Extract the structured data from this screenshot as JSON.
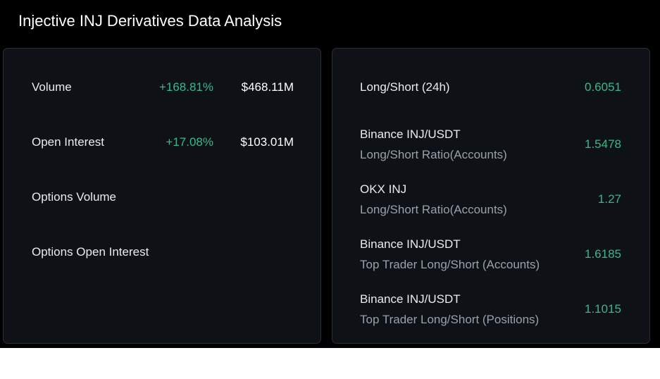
{
  "header": {
    "title": "Injective INJ Derivatives Data Analysis"
  },
  "left_panel": {
    "rows": [
      {
        "label": "Volume",
        "change": "+168.81%",
        "value": "$468.11M"
      },
      {
        "label": "Open Interest",
        "change": "+17.08%",
        "value": "$103.01M"
      },
      {
        "label": "Options Volume",
        "change": "",
        "value": ""
      },
      {
        "label": "Options Open Interest",
        "change": "",
        "value": ""
      }
    ]
  },
  "right_panel": {
    "rows": [
      {
        "label": "Long/Short (24h)",
        "sublabel": "",
        "value": "0.6051"
      },
      {
        "label": "Binance INJ/USDT",
        "sublabel": "Long/Short Ratio(Accounts)",
        "value": "1.5478"
      },
      {
        "label": "OKX INJ",
        "sublabel": "Long/Short Ratio(Accounts)",
        "value": "1.27"
      },
      {
        "label": "Binance INJ/USDT",
        "sublabel": "Top Trader Long/Short (Accounts)",
        "value": "1.6185"
      },
      {
        "label": "Binance INJ/USDT",
        "sublabel": "Top Trader Long/Short (Positions)",
        "value": "1.1015"
      }
    ]
  },
  "colors": {
    "background": "#000000",
    "panel": "#0e1116",
    "positive": "#3ab88a",
    "text": "#ffffff",
    "muted": "#9aa1ab"
  }
}
